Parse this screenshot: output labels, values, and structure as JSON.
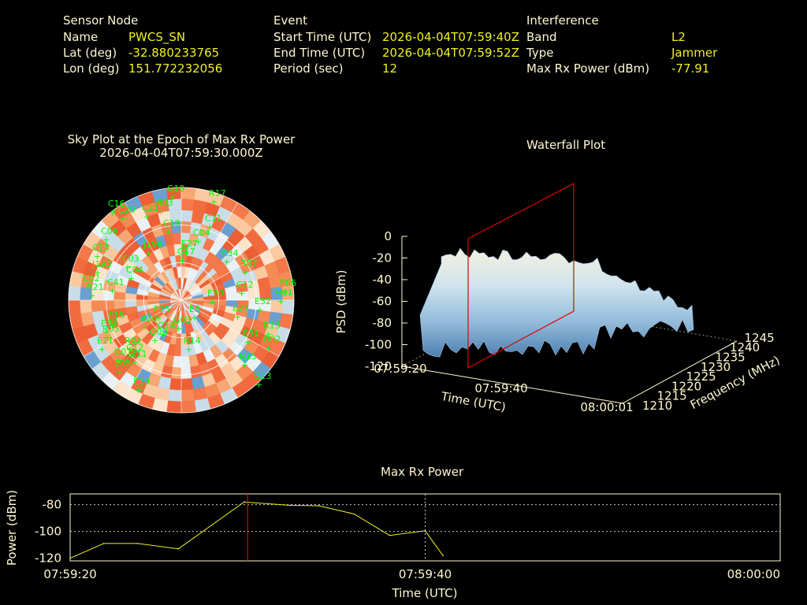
{
  "info": {
    "sensor_header": "Sensor Node",
    "name_label": "Name",
    "name_value": "PWCS_SN",
    "lat_label": "Lat (deg)",
    "lat_value": "-32.880233765",
    "lon_label": "Lon (deg)",
    "lon_value": "151.772232056",
    "event_header": "Event",
    "start_label": "Start Time (UTC)",
    "start_value": "2026-04-04T07:59:40Z",
    "end_label": "End Time (UTC)",
    "end_value": "2026-04-04T07:59:52Z",
    "period_label": "Period (sec)",
    "period_value": "12",
    "interf_header": "Interference",
    "band_label": "Band",
    "band_value": "L2",
    "type_label": "Type",
    "type_value": "Jammer",
    "maxrx_label": "Max Rx Power (dBm)",
    "maxrx_value": "-77.91"
  },
  "chart_data": [
    {
      "type": "scatter",
      "title": "Sky Plot at the Epoch of Max Rx Power",
      "subtitle": "2026-04-04T07:59:30.000Z",
      "satellites": [
        "G19",
        "C16",
        "R03",
        "C20",
        "C21",
        "C06",
        "C13",
        "J193",
        "C02",
        "C41",
        "C04",
        "C03",
        "J199",
        "C19",
        "R17",
        "C11",
        "C04",
        "E27",
        "G17",
        "C34",
        "R07",
        "C12",
        "E06",
        "R01",
        "E30",
        "E32",
        "E27",
        "R13",
        "E31",
        "G02",
        "R15",
        "G13",
        "E25",
        "G14",
        "R14",
        "E15",
        "E33",
        "R05",
        "E11",
        "R02",
        "G12",
        "R11",
        "G01",
        "E05",
        "E19",
        "G03",
        "G09",
        "E3",
        "R20",
        "R21"
      ],
      "satellite_color": "#00ff00"
    },
    {
      "type": "area",
      "title": "Waterfall Plot",
      "xlabel": "Time (UTC)",
      "ylabel": "Frequency (MHz)",
      "zlabel": "PSD (dBm)",
      "x_ticks": [
        "07:59:20",
        "07:59:40",
        "08:00:01"
      ],
      "y_ticks": [
        "1210",
        "1215",
        "1220",
        "1225",
        "1230",
        "1235",
        "1240",
        "1245"
      ],
      "z_ticks": [
        "0",
        "-20",
        "-40",
        "-60",
        "-80",
        "-100",
        "-120"
      ],
      "zlim": [
        -120,
        0
      ],
      "marker_time": "07:59:30",
      "marker_color": "#e00000"
    },
    {
      "type": "line",
      "title": "Max Rx Power",
      "xlabel": "Time (UTC)",
      "ylabel": "Power (dBm)",
      "x_ticks": [
        "07:59:20",
        "07:59:40",
        "08:00:00"
      ],
      "y_ticks": [
        "-80",
        "-100",
        "-120"
      ],
      "ylim": [
        -122,
        -72
      ],
      "xlim_sec": [
        0,
        40
      ],
      "series": [
        {
          "x": [
            0.0,
            1.9,
            3.8,
            6.1,
            9.8,
            12.4,
            14.0,
            16.0,
            18.0,
            20.0,
            21.0
          ],
          "y": [
            -120.0,
            -109.0,
            -109.0,
            -113.0,
            -78.0,
            -80.5,
            -80.8,
            -87.0,
            -103.0,
            -99.5,
            -118.0
          ]
        }
      ],
      "marker_x_sec": 10.0,
      "marker_color": "#e00000",
      "line_color": "#f0f020"
    }
  ]
}
